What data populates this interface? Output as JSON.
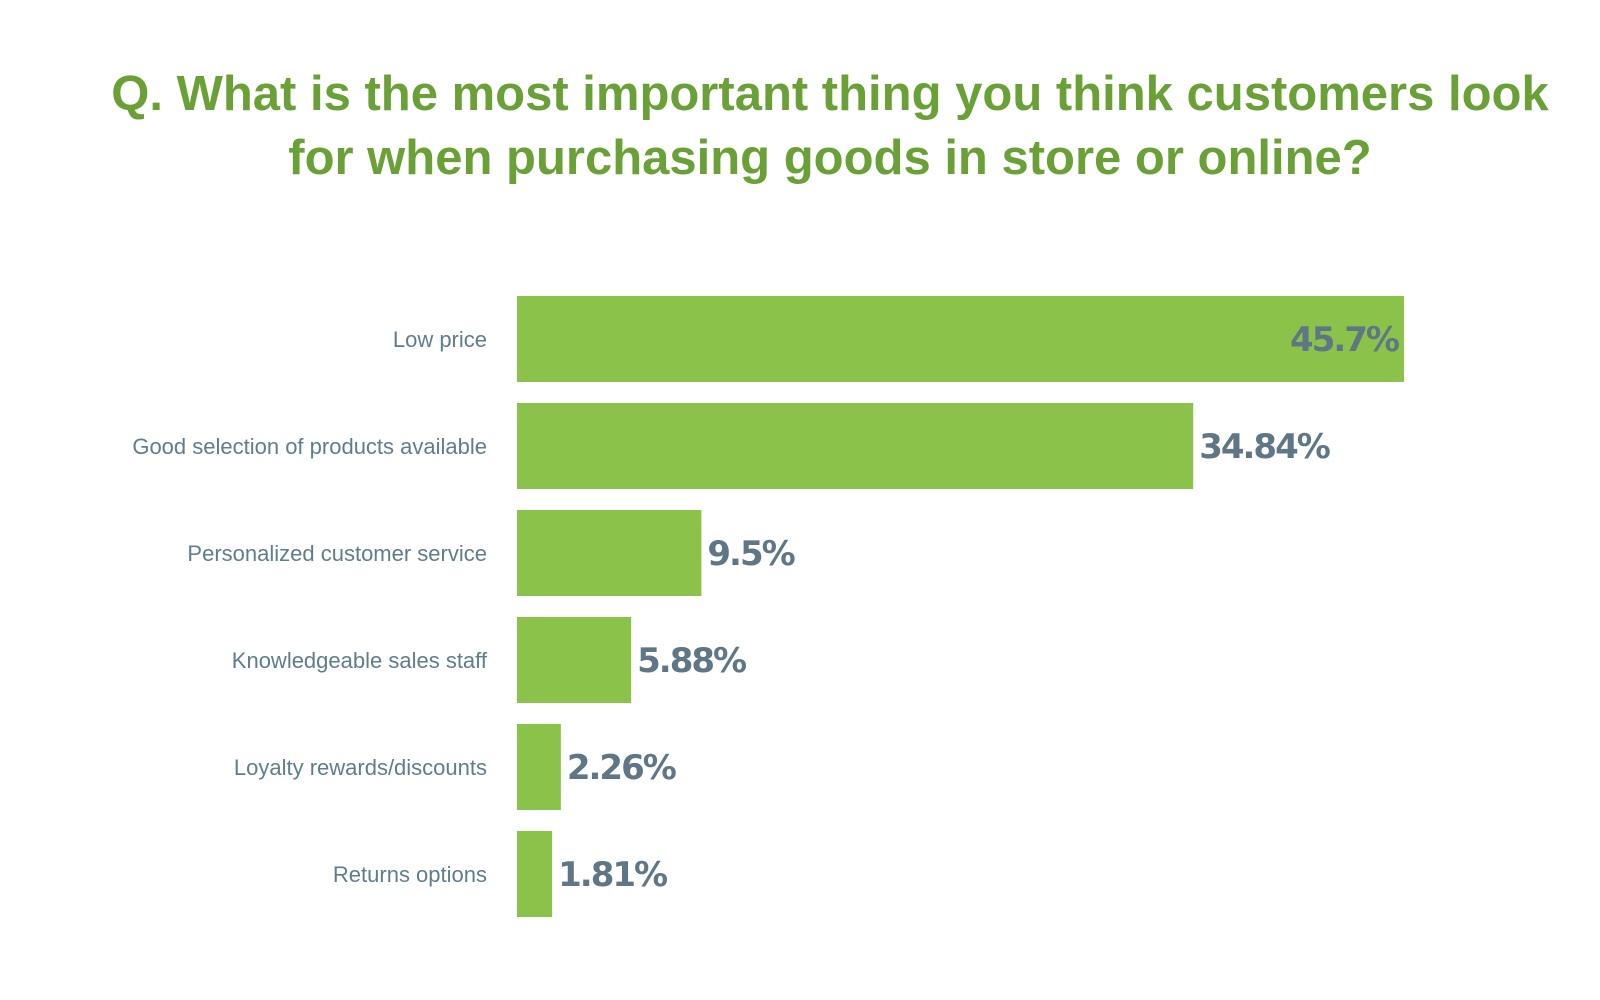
{
  "chart_data": {
    "type": "bar",
    "orientation": "horizontal",
    "title_lines": [
      "Q. What is the most important thing you think customers look",
      "for when purchasing goods in store or online?"
    ],
    "categories": [
      "Low price",
      "Good selection of products available",
      "Personalized customer service",
      "Knowledgeable sales staff",
      "Loyalty rewards/discounts",
      "Returns options"
    ],
    "values": [
      45.7,
      34.84,
      9.5,
      5.88,
      2.26,
      1.81
    ],
    "value_labels": [
      "45.7%",
      "34.84%",
      "9.5%",
      "5.88%",
      "2.26%",
      "1.81%"
    ],
    "xlim": [
      0,
      45.7
    ],
    "grid": false,
    "legend": "none",
    "colors": {
      "bar": "#8bc34a",
      "title": "#6aa136",
      "category_label": "#5f7d8c",
      "value_label": "#5e7685"
    }
  }
}
